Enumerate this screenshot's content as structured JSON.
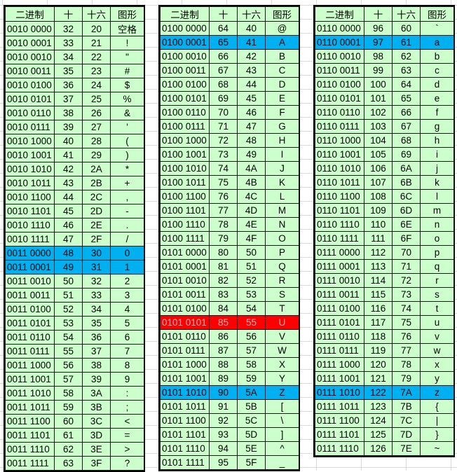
{
  "headers": [
    "二进制",
    "十",
    "十六",
    "图形"
  ],
  "tables": [
    {
      "rows": [
        [
          "0010 0000",
          "32",
          "20",
          "空格"
        ],
        [
          "0010 0001",
          "33",
          "21",
          "!"
        ],
        [
          "0010 0010",
          "34",
          "22",
          "\""
        ],
        [
          "0010 0011",
          "35",
          "23",
          "#"
        ],
        [
          "0010 0100",
          "36",
          "24",
          "$"
        ],
        [
          "0010 0101",
          "37",
          "25",
          "%"
        ],
        [
          "0010 0110",
          "38",
          "26",
          "&"
        ],
        [
          "0010 0111",
          "39",
          "27",
          "'"
        ],
        [
          "0010 1000",
          "40",
          "28",
          "("
        ],
        [
          "0010 1001",
          "41",
          "29",
          ")"
        ],
        [
          "0010 1010",
          "42",
          "2A",
          "*"
        ],
        [
          "0010 1011",
          "43",
          "2B",
          "+"
        ],
        [
          "0010 1100",
          "44",
          "2C",
          ","
        ],
        [
          "0010 1101",
          "45",
          "2D",
          "-"
        ],
        [
          "0010 1110",
          "46",
          "2E",
          "."
        ],
        [
          "0010 1111",
          "47",
          "2F",
          "/"
        ],
        [
          "0011 0000",
          "48",
          "30",
          "0"
        ],
        [
          "0011 0001",
          "49",
          "31",
          "1"
        ],
        [
          "0011 0010",
          "50",
          "32",
          "2"
        ],
        [
          "0011 0011",
          "51",
          "33",
          "3"
        ],
        [
          "0011 0100",
          "52",
          "34",
          "4"
        ],
        [
          "0011 0101",
          "53",
          "35",
          "5"
        ],
        [
          "0011 0110",
          "54",
          "36",
          "6"
        ],
        [
          "0011 0111",
          "55",
          "37",
          "7"
        ],
        [
          "0011 1000",
          "56",
          "38",
          "8"
        ],
        [
          "0011 1001",
          "57",
          "39",
          "9"
        ],
        [
          "0011 1010",
          "58",
          "3A",
          ":"
        ],
        [
          "0011 1011",
          "59",
          "3B",
          ";"
        ],
        [
          "0011 1100",
          "60",
          "3C",
          "<"
        ],
        [
          "0011 1101",
          "61",
          "3D",
          "="
        ],
        [
          "0011 1110",
          "62",
          "3E",
          ">"
        ],
        [
          "0011 1111",
          "63",
          "3F",
          "?"
        ]
      ],
      "highlight_blue": [
        16,
        17
      ],
      "highlight_red": []
    },
    {
      "rows": [
        [
          "0100 0000",
          "64",
          "40",
          "@"
        ],
        [
          "0100 0001",
          "65",
          "41",
          "A"
        ],
        [
          "0100 0010",
          "66",
          "42",
          "B"
        ],
        [
          "0100 0011",
          "67",
          "43",
          "C"
        ],
        [
          "0100 0100",
          "68",
          "44",
          "D"
        ],
        [
          "0100 0101",
          "69",
          "45",
          "E"
        ],
        [
          "0100 0110",
          "70",
          "46",
          "F"
        ],
        [
          "0100 0111",
          "71",
          "47",
          "G"
        ],
        [
          "0100 1000",
          "72",
          "48",
          "H"
        ],
        [
          "0100 1001",
          "73",
          "49",
          "I"
        ],
        [
          "0100 1010",
          "74",
          "4A",
          "J"
        ],
        [
          "0100 1011",
          "75",
          "4B",
          "K"
        ],
        [
          "0100 1100",
          "76",
          "4C",
          "L"
        ],
        [
          "0100 1101",
          "77",
          "4D",
          "M"
        ],
        [
          "0100 1110",
          "78",
          "4E",
          "N"
        ],
        [
          "0100 1111",
          "79",
          "4F",
          "O"
        ],
        [
          "0101 0000",
          "80",
          "50",
          "P"
        ],
        [
          "0101 0001",
          "81",
          "51",
          "Q"
        ],
        [
          "0101 0010",
          "82",
          "52",
          "R"
        ],
        [
          "0101 0011",
          "83",
          "53",
          "S"
        ],
        [
          "0101 0100",
          "84",
          "54",
          "T"
        ],
        [
          "0101 0101",
          "85",
          "55",
          "U"
        ],
        [
          "0101 0110",
          "86",
          "56",
          "V"
        ],
        [
          "0101 0111",
          "87",
          "57",
          "W"
        ],
        [
          "0101 1000",
          "88",
          "58",
          "X"
        ],
        [
          "0101 1001",
          "89",
          "59",
          "Y"
        ],
        [
          "0101 1010",
          "90",
          "5A",
          "Z"
        ],
        [
          "0101 1011",
          "91",
          "5B",
          "["
        ],
        [
          "0101 1100",
          "92",
          "5C",
          "\\"
        ],
        [
          "0101 1101",
          "93",
          "5D",
          "]"
        ],
        [
          "0101 1110",
          "94",
          "5E",
          "^"
        ],
        [
          "0101 1111",
          "95",
          "5F",
          "_"
        ]
      ],
      "highlight_blue": [
        1,
        26
      ],
      "highlight_red": [
        21
      ]
    },
    {
      "rows": [
        [
          "0110 0000",
          "96",
          "60",
          "`"
        ],
        [
          "0110 0001",
          "97",
          "61",
          "a"
        ],
        [
          "0110 0010",
          "98",
          "62",
          "b"
        ],
        [
          "0110 0011",
          "99",
          "63",
          "c"
        ],
        [
          "0110 0100",
          "100",
          "64",
          "d"
        ],
        [
          "0110 0101",
          "101",
          "65",
          "e"
        ],
        [
          "0110 0110",
          "102",
          "66",
          "f"
        ],
        [
          "0110 0111",
          "103",
          "67",
          "g"
        ],
        [
          "0110 1000",
          "104",
          "68",
          "h"
        ],
        [
          "0110 1001",
          "105",
          "69",
          "i"
        ],
        [
          "0110 1010",
          "106",
          "6A",
          "j"
        ],
        [
          "0110 1011",
          "107",
          "6B",
          "k"
        ],
        [
          "0110 1100",
          "108",
          "6C",
          "l"
        ],
        [
          "0110 1101",
          "109",
          "6D",
          "m"
        ],
        [
          "0110 1110",
          "110",
          "6E",
          "n"
        ],
        [
          "0110 1111",
          "111",
          "6F",
          "o"
        ],
        [
          "0111 0000",
          "112",
          "70",
          "p"
        ],
        [
          "0111 0001",
          "113",
          "71",
          "q"
        ],
        [
          "0111 0010",
          "114",
          "72",
          "r"
        ],
        [
          "0111 0011",
          "115",
          "73",
          "s"
        ],
        [
          "0111 0100",
          "116",
          "74",
          "t"
        ],
        [
          "0111 0101",
          "117",
          "75",
          "u"
        ],
        [
          "0111 0110",
          "118",
          "76",
          "v"
        ],
        [
          "0111 0111",
          "119",
          "77",
          "w"
        ],
        [
          "0111 1000",
          "120",
          "78",
          "x"
        ],
        [
          "0111 1001",
          "121",
          "79",
          "y"
        ],
        [
          "0111 1010",
          "122",
          "7A",
          "z"
        ],
        [
          "0111 1011",
          "123",
          "7B",
          "{"
        ],
        [
          "0111 1100",
          "124",
          "7C",
          "|"
        ],
        [
          "0111 1101",
          "125",
          "7D",
          "}"
        ],
        [
          "0111 1110",
          "126",
          "7E",
          "~"
        ]
      ],
      "highlight_blue": [
        1,
        26
      ],
      "highlight_red": []
    }
  ],
  "colors": {
    "panel_bg": "#ccffcc",
    "highlight_blue": "#00b0f0",
    "highlight_red": "#ff0000",
    "red_text": "#b9b9b9",
    "grid_line": "#d9d9d9"
  }
}
